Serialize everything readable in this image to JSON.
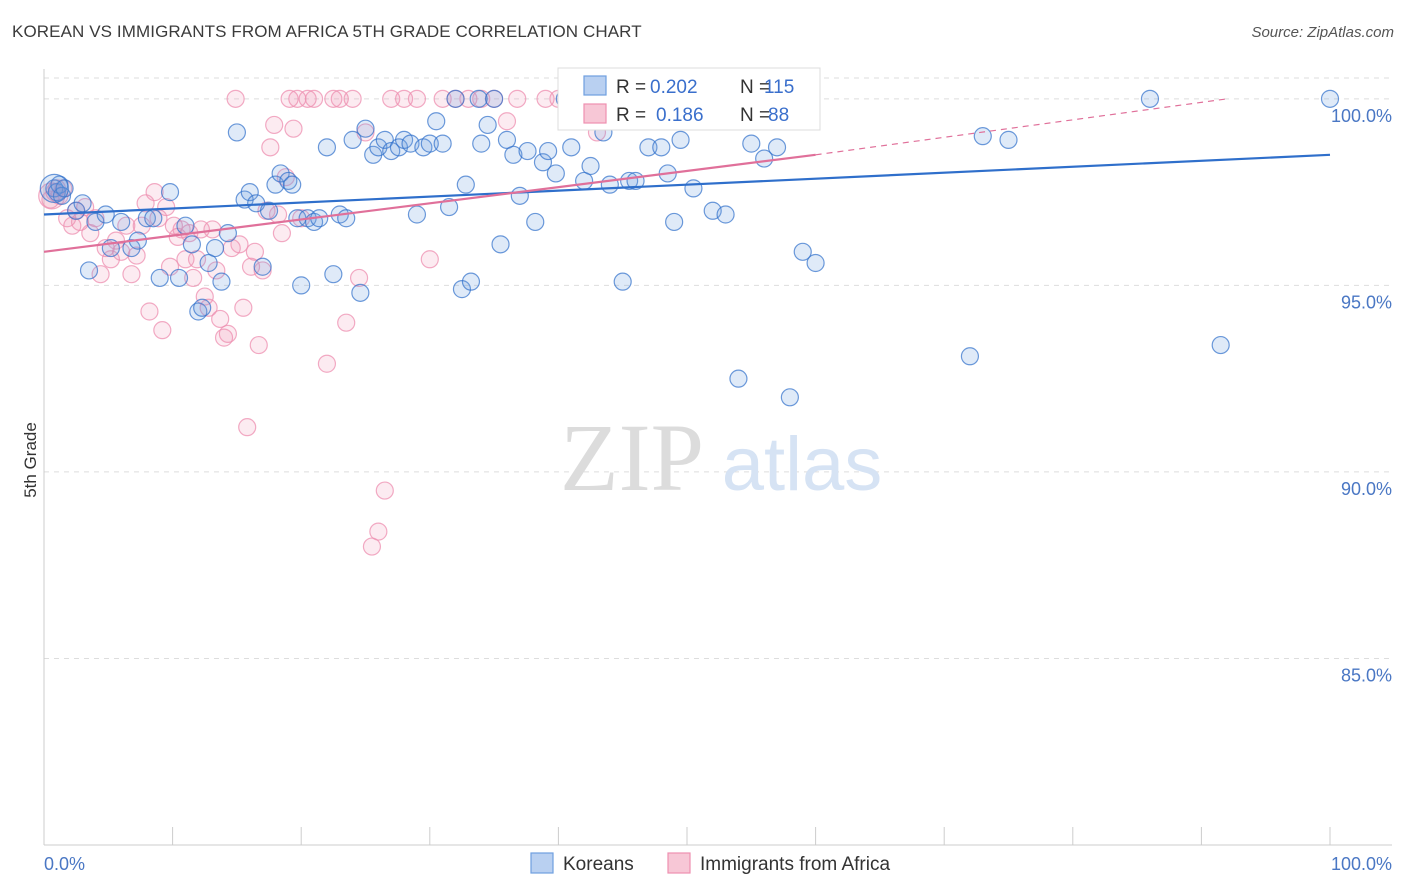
{
  "header": {
    "title": "KOREAN VS IMMIGRANTS FROM AFRICA 5TH GRADE CORRELATION CHART",
    "source": "Source: ZipAtlas.com"
  },
  "watermark": {
    "zip": "ZIP",
    "atlas": "atlas"
  },
  "colors": {
    "blue": "#6f9fe0",
    "blue_line": "#2f6fcb",
    "pink": "#ee8fb0",
    "pink_line": "#e0709a",
    "grid": "#dddddd",
    "tick": "#4a77c4"
  },
  "legend": {
    "rows": [
      {
        "r_label": "R =",
        "r_value": "0.202",
        "n_label": "N =",
        "n_value": "115"
      },
      {
        "r_label": "R =",
        "r_value": "0.186",
        "n_label": "N =",
        "n_value": "88"
      }
    ]
  },
  "bottom_legend": [
    "Koreans",
    "Immigrants from Africa"
  ],
  "chart_data": {
    "type": "scatter",
    "title": "KOREAN VS IMMIGRANTS FROM AFRICA 5TH GRADE CORRELATION CHART",
    "ylabel": "5th Grade",
    "xlabel": "",
    "xlim": [
      0,
      100
    ],
    "ylim": [
      80,
      100.8
    ],
    "x_tick_labels": [
      "0.0%",
      "100.0%"
    ],
    "y_ticks": [
      {
        "value": 100,
        "label": "100.0%"
      },
      {
        "value": 95,
        "label": "95.0%"
      },
      {
        "value": 90,
        "label": "90.0%"
      },
      {
        "value": 85,
        "label": "85.0%"
      }
    ],
    "grid": true,
    "legend_position": "top-center",
    "series": [
      {
        "name": "Koreans",
        "r": 0.202,
        "n": 115,
        "trend": {
          "x": [
            0,
            100
          ],
          "y": [
            96.9,
            98.5
          ]
        },
        "points": [
          [
            0.8,
            97.6
          ],
          [
            1.0,
            97.5
          ],
          [
            1.2,
            97.7
          ],
          [
            1.4,
            97.4
          ],
          [
            1.6,
            97.6
          ],
          [
            2.5,
            97.0
          ],
          [
            3.0,
            97.2
          ],
          [
            3.5,
            95.4
          ],
          [
            4.0,
            96.7
          ],
          [
            4.8,
            96.9
          ],
          [
            5.2,
            96.0
          ],
          [
            6.0,
            96.7
          ],
          [
            6.8,
            96.0
          ],
          [
            7.3,
            96.2
          ],
          [
            8.0,
            96.8
          ],
          [
            8.5,
            96.8
          ],
          [
            9.0,
            95.2
          ],
          [
            9.8,
            97.5
          ],
          [
            10.5,
            95.2
          ],
          [
            11.0,
            96.6
          ],
          [
            11.5,
            96.1
          ],
          [
            12.0,
            94.3
          ],
          [
            12.3,
            94.4
          ],
          [
            12.8,
            95.6
          ],
          [
            13.3,
            96.0
          ],
          [
            13.8,
            95.1
          ],
          [
            14.3,
            96.4
          ],
          [
            15.0,
            99.1
          ],
          [
            15.6,
            97.3
          ],
          [
            16.0,
            97.5
          ],
          [
            16.5,
            97.2
          ],
          [
            17.0,
            95.5
          ],
          [
            17.5,
            97.0
          ],
          [
            18.0,
            97.7
          ],
          [
            18.4,
            98.0
          ],
          [
            19.0,
            97.8
          ],
          [
            19.3,
            97.7
          ],
          [
            19.7,
            96.8
          ],
          [
            20.0,
            95.0
          ],
          [
            20.5,
            96.8
          ],
          [
            21.0,
            96.7
          ],
          [
            21.4,
            96.8
          ],
          [
            22.0,
            98.7
          ],
          [
            22.5,
            95.3
          ],
          [
            23.0,
            96.9
          ],
          [
            23.5,
            96.8
          ],
          [
            24.0,
            98.9
          ],
          [
            24.6,
            94.8
          ],
          [
            25.0,
            99.2
          ],
          [
            25.6,
            98.5
          ],
          [
            26.0,
            98.7
          ],
          [
            26.5,
            98.9
          ],
          [
            27.0,
            98.6
          ],
          [
            27.6,
            98.7
          ],
          [
            28.0,
            98.9
          ],
          [
            28.5,
            98.8
          ],
          [
            29.0,
            96.9
          ],
          [
            29.5,
            98.7
          ],
          [
            30.0,
            98.8
          ],
          [
            30.5,
            99.4
          ],
          [
            31.0,
            98.8
          ],
          [
            31.5,
            97.1
          ],
          [
            32.0,
            100.0
          ],
          [
            32.5,
            94.9
          ],
          [
            32.8,
            97.7
          ],
          [
            33.2,
            95.1
          ],
          [
            33.8,
            100.0
          ],
          [
            34.0,
            98.8
          ],
          [
            34.5,
            99.3
          ],
          [
            35.0,
            100.0
          ],
          [
            35.5,
            96.1
          ],
          [
            36.0,
            98.9
          ],
          [
            36.5,
            98.5
          ],
          [
            37.0,
            97.4
          ],
          [
            37.6,
            98.6
          ],
          [
            38.2,
            96.7
          ],
          [
            38.8,
            98.3
          ],
          [
            39.2,
            98.6
          ],
          [
            39.8,
            98.0
          ],
          [
            40.5,
            100.0
          ],
          [
            41.0,
            98.7
          ],
          [
            42.0,
            97.8
          ],
          [
            42.5,
            98.2
          ],
          [
            43.5,
            99.1
          ],
          [
            44.0,
            97.7
          ],
          [
            45.0,
            95.1
          ],
          [
            45.5,
            97.8
          ],
          [
            46.0,
            97.8
          ],
          [
            47.0,
            98.7
          ],
          [
            48.0,
            98.7
          ],
          [
            48.5,
            98.0
          ],
          [
            49.0,
            96.7
          ],
          [
            49.5,
            98.9
          ],
          [
            50.0,
            99.5
          ],
          [
            50.5,
            97.6
          ],
          [
            51.0,
            100.0
          ],
          [
            52.0,
            97.0
          ],
          [
            53.0,
            96.9
          ],
          [
            54.0,
            92.5
          ],
          [
            55.0,
            98.8
          ],
          [
            56.0,
            98.4
          ],
          [
            57.0,
            98.7
          ],
          [
            58.0,
            92.0
          ],
          [
            59.0,
            95.9
          ],
          [
            60.0,
            95.6
          ],
          [
            72.0,
            93.1
          ],
          [
            73.0,
            99.0
          ],
          [
            75.0,
            98.9
          ],
          [
            86.0,
            100.0
          ],
          [
            91.5,
            93.4
          ],
          [
            100.0,
            100.0
          ]
        ]
      },
      {
        "name": "Immigrants from Africa",
        "r": 0.186,
        "n": 88,
        "trend": {
          "x": [
            0,
            60
          ],
          "y": [
            95.9,
            98.5
          ]
        },
        "trend_dashed": {
          "x": [
            60,
            92
          ],
          "y": [
            98.5,
            100.0
          ]
        },
        "points": [
          [
            0.5,
            97.3
          ],
          [
            0.8,
            97.5
          ],
          [
            1.0,
            97.6
          ],
          [
            1.2,
            97.4
          ],
          [
            1.5,
            97.6
          ],
          [
            1.8,
            96.8
          ],
          [
            2.2,
            96.6
          ],
          [
            2.5,
            97.0
          ],
          [
            2.8,
            96.7
          ],
          [
            3.2,
            97.1
          ],
          [
            3.6,
            96.4
          ],
          [
            4.0,
            96.8
          ],
          [
            4.4,
            95.3
          ],
          [
            4.8,
            96.0
          ],
          [
            5.2,
            95.7
          ],
          [
            5.6,
            96.2
          ],
          [
            6.0,
            95.9
          ],
          [
            6.4,
            96.6
          ],
          [
            6.8,
            95.3
          ],
          [
            7.2,
            95.8
          ],
          [
            7.6,
            96.6
          ],
          [
            7.9,
            97.2
          ],
          [
            8.2,
            94.3
          ],
          [
            8.6,
            97.5
          ],
          [
            8.9,
            96.8
          ],
          [
            9.2,
            93.8
          ],
          [
            9.5,
            97.1
          ],
          [
            9.8,
            95.5
          ],
          [
            10.1,
            96.6
          ],
          [
            10.4,
            96.3
          ],
          [
            10.7,
            96.5
          ],
          [
            11.0,
            95.7
          ],
          [
            11.3,
            96.4
          ],
          [
            11.6,
            95.2
          ],
          [
            11.9,
            95.7
          ],
          [
            12.2,
            96.5
          ],
          [
            12.5,
            94.7
          ],
          [
            12.8,
            94.4
          ],
          [
            13.1,
            96.5
          ],
          [
            13.4,
            95.4
          ],
          [
            13.7,
            94.1
          ],
          [
            14.0,
            93.6
          ],
          [
            14.3,
            93.7
          ],
          [
            14.6,
            96.0
          ],
          [
            14.9,
            100.0
          ],
          [
            15.2,
            96.1
          ],
          [
            15.5,
            94.4
          ],
          [
            15.8,
            91.2
          ],
          [
            16.1,
            95.5
          ],
          [
            16.4,
            95.9
          ],
          [
            16.7,
            93.4
          ],
          [
            17.0,
            95.4
          ],
          [
            17.3,
            97.0
          ],
          [
            17.6,
            98.7
          ],
          [
            17.9,
            99.3
          ],
          [
            18.2,
            96.9
          ],
          [
            18.5,
            96.4
          ],
          [
            18.8,
            97.9
          ],
          [
            19.1,
            100.0
          ],
          [
            19.4,
            99.2
          ],
          [
            19.7,
            100.0
          ],
          [
            20.0,
            96.8
          ],
          [
            20.5,
            100.0
          ],
          [
            21.0,
            100.0
          ],
          [
            22.0,
            92.9
          ],
          [
            22.5,
            100.0
          ],
          [
            23.0,
            100.0
          ],
          [
            23.5,
            94.0
          ],
          [
            24.0,
            100.0
          ],
          [
            24.5,
            95.2
          ],
          [
            25.0,
            99.1
          ],
          [
            25.5,
            88.0
          ],
          [
            26.0,
            88.4
          ],
          [
            26.5,
            89.5
          ],
          [
            27.0,
            100.0
          ],
          [
            28.0,
            100.0
          ],
          [
            29.0,
            100.0
          ],
          [
            30.0,
            95.7
          ],
          [
            31.0,
            100.0
          ],
          [
            32.0,
            100.0
          ],
          [
            33.0,
            100.0
          ],
          [
            34.0,
            100.0
          ],
          [
            35.0,
            100.0
          ],
          [
            36.0,
            99.4
          ],
          [
            36.8,
            100.0
          ],
          [
            39.0,
            100.0
          ],
          [
            40.0,
            100.0
          ],
          [
            43.0,
            99.1
          ]
        ]
      }
    ]
  }
}
